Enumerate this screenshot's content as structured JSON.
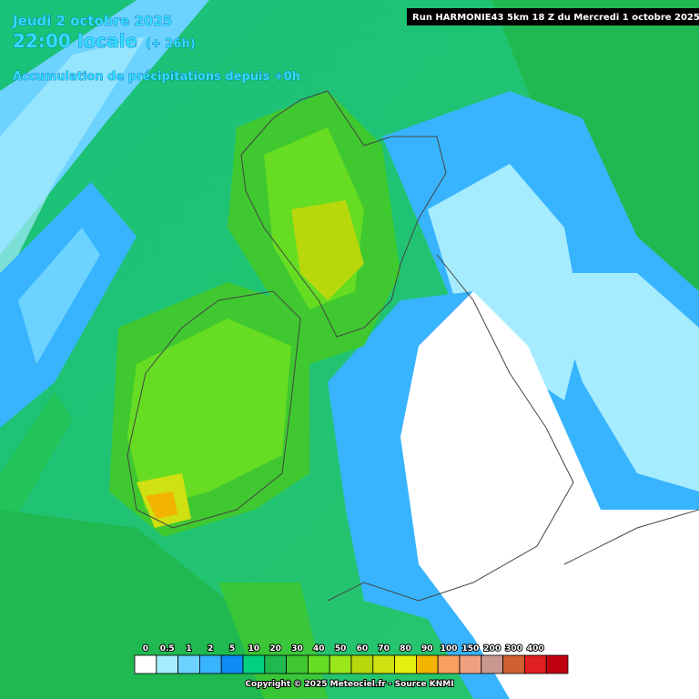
{
  "header": {
    "date": "Jeudi 2 octobre 2025",
    "time": "22:00 locale",
    "offset": "(+ 26h)",
    "parameter": "Accumulation de précipitations depuis +0h",
    "run": "Run HARMONIE43 5km 18 Z du Mercredi 1 octobre 2025"
  },
  "legend": {
    "labels": [
      "0",
      "0.5",
      "1",
      "2",
      "5",
      "10",
      "20",
      "30",
      "40",
      "50",
      "60",
      "70",
      "80",
      "90",
      "100",
      "150",
      "200",
      "300",
      "400"
    ],
    "colors": [
      "#ffffff",
      "#a6ecff",
      "#6cd2ff",
      "#38b4ff",
      "#0e8cf5",
      "#00d080",
      "#20b850",
      "#40c830",
      "#66dd22",
      "#99e61a",
      "#b8d80c",
      "#d0e010",
      "#e6ee10",
      "#f2b400",
      "#f7a060",
      "#f0a080",
      "#c89890",
      "#d06030",
      "#e02020",
      "#c00010"
    ]
  },
  "footer": {
    "copyright": "Copyright © 2025 Meteociel.fr - Source KNMI"
  }
}
